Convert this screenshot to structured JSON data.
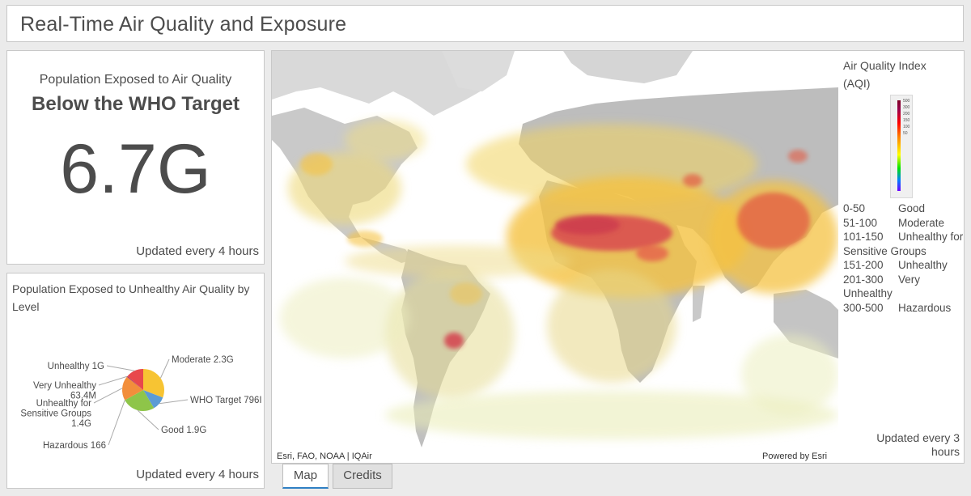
{
  "header": {
    "title": "Real-Time Air Quality and Exposure"
  },
  "indicator": {
    "top_text": "Population Exposed to Air Quality",
    "middle_text": "Below the WHO Target",
    "value": "6.7G",
    "updated": "Updated every 4 hours"
  },
  "pie_chart": {
    "title": "Population Exposed to Unhealthy Air Quality by Level",
    "updated": "Updated every 4 hours",
    "chart_data": {
      "type": "pie",
      "labels": [
        "Moderate 2.3G",
        "WHO Target 796I",
        "Good 1.9G",
        "Hazardous 166",
        "Unhealthy for Sensitive Groups 1.4G",
        "Very Unhealthy 63.4M",
        "Unhealthy 1G"
      ],
      "values": [
        2.3,
        0.796,
        1.9,
        1.66e-07,
        1.4,
        0.0634,
        1.0
      ],
      "colors": [
        "#f7c433",
        "#5b9bd5",
        "#8ec549",
        "#9b1d4a",
        "#f28e3b",
        "#b13a60",
        "#e8484c"
      ]
    }
  },
  "map": {
    "legend_title": "Air Quality Index (AQI)",
    "legend_ticks": [
      "500",
      "300",
      "200",
      "150",
      "100",
      "50"
    ],
    "legend_items": [
      {
        "range": "0-50",
        "label": "Good"
      },
      {
        "range": "51-100",
        "label": "Moderate"
      },
      {
        "range": "101-150",
        "label": "Unhealthy for Sensitive Groups"
      },
      {
        "range": "151-200",
        "label": "Unhealthy"
      },
      {
        "range": "201-300",
        "label": "Very Unhealthy"
      },
      {
        "range": "300-500",
        "label": "Hazardous"
      }
    ],
    "updated": "Updated every 3 hours",
    "attribution_left": "Esri, FAO, NOAA | IQAir",
    "attribution_right": "Powered by Esri",
    "expand_icon": "expand-icon"
  },
  "tabs": [
    {
      "label": "Map",
      "active": true
    },
    {
      "label": "Credits",
      "active": false
    }
  ]
}
